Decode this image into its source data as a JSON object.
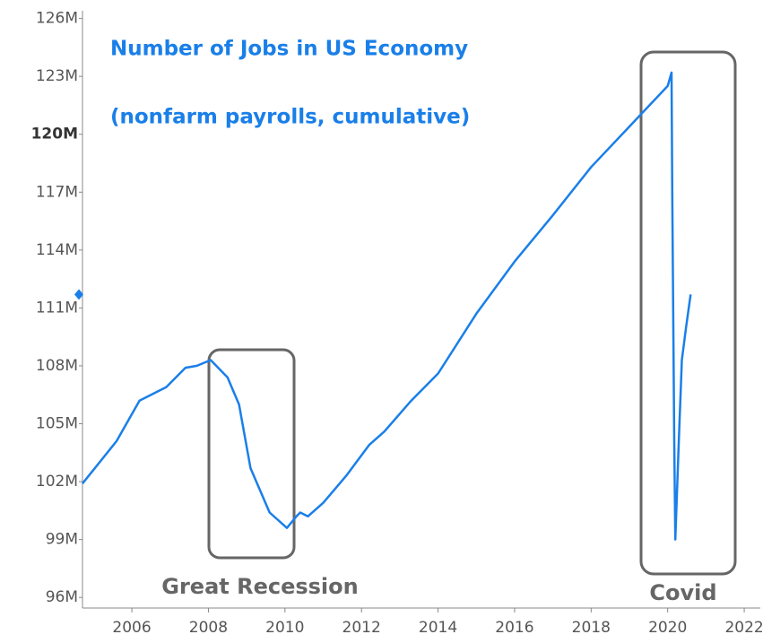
{
  "chart_data": {
    "type": "line",
    "title": "Number of Jobs in US Economy",
    "subtitle": "(nonfarm payrolls, cumulative)",
    "annotations": [
      "Great Recession",
      "Covid"
    ],
    "x": [
      2004.71,
      2005.6,
      2006.2,
      2006.9,
      2007.4,
      2007.7,
      2008.06,
      2008.5,
      2008.8,
      2009.1,
      2009.6,
      2010.05,
      2010.3,
      2010.4,
      2010.6,
      2011.0,
      2011.6,
      2012.2,
      2012.6,
      2013.3,
      2014.0,
      2015.0,
      2016.0,
      2017.0,
      2018.0,
      2019.0,
      2020.0,
      2020.1,
      2020.12,
      2020.17,
      2020.2,
      2020.29,
      2020.37,
      2020.48,
      2020.6
    ],
    "series": [
      {
        "name": "Nonfarm payrolls",
        "color": "#1a7fe8",
        "values": [
          101.9,
          104.1,
          106.2,
          106.9,
          107.9,
          108.0,
          108.3,
          107.4,
          106.0,
          102.7,
          100.4,
          99.6,
          100.2,
          100.4,
          100.2,
          100.9,
          102.3,
          103.9,
          104.6,
          106.2,
          107.6,
          110.7,
          113.4,
          115.8,
          118.3,
          120.4,
          122.5,
          123.2,
          116.9,
          104.1,
          99.0,
          104.1,
          108.3,
          110.0,
          111.7
        ]
      }
    ],
    "xlim": [
      2004.71,
      2022.42
    ],
    "xticks": [
      2006,
      2008,
      2010,
      2012,
      2014,
      2016,
      2018,
      2020,
      2022
    ],
    "ylim": [
      95.45,
      126.4
    ],
    "yticks": [
      {
        "value": 96,
        "label": "96M"
      },
      {
        "value": 99,
        "label": "99M"
      },
      {
        "value": 102,
        "label": "102M"
      },
      {
        "value": 105,
        "label": "105M"
      },
      {
        "value": 108,
        "label": "108M"
      },
      {
        "value": 111,
        "label": "111M"
      },
      {
        "value": 114,
        "label": "114M"
      },
      {
        "value": 117,
        "label": "117M"
      },
      {
        "value": 120,
        "label": "120M"
      },
      {
        "value": 123,
        "label": "123M"
      },
      {
        "value": 126,
        "label": "126M"
      }
    ],
    "grid": false
  }
}
